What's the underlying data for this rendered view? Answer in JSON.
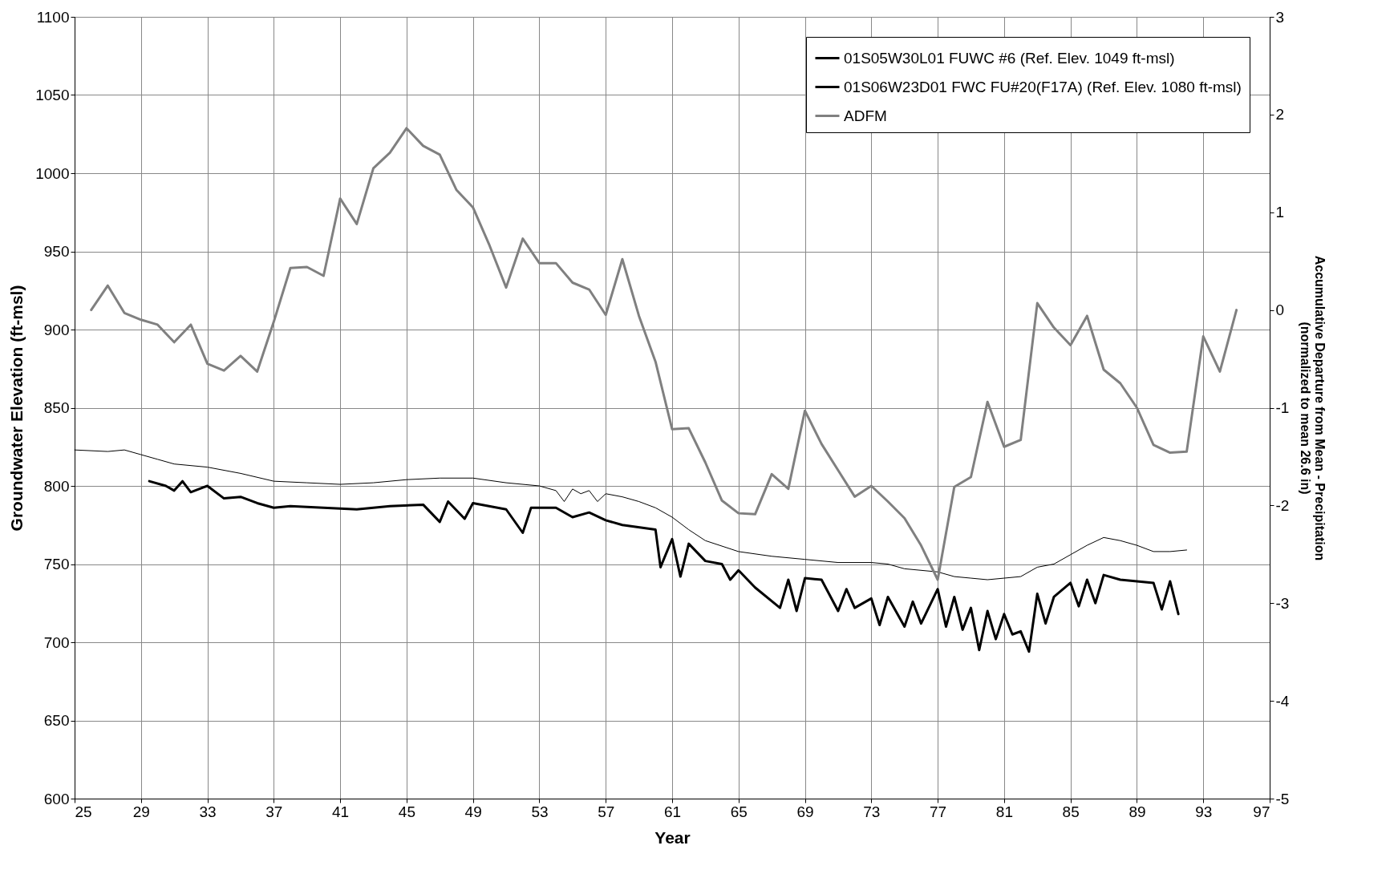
{
  "chart_data": {
    "type": "line",
    "xlabel": "Year",
    "ylabel": "Groundwater Elevation (ft-msl)",
    "y2label": "Accumulative Departure from Mean - Precipitation\n(normalized to mean 26.6 in)",
    "xlim": [
      25,
      97
    ],
    "xticks": [
      25,
      29,
      33,
      37,
      41,
      45,
      49,
      53,
      57,
      61,
      65,
      69,
      73,
      77,
      81,
      85,
      89,
      93,
      97
    ],
    "ylim": [
      600,
      1100
    ],
    "yticks": [
      600,
      650,
      700,
      750,
      800,
      850,
      900,
      950,
      1000,
      1050,
      1100
    ],
    "y2lim": [
      -5,
      3
    ],
    "y2ticks": [
      -5,
      -4,
      -3,
      -2,
      -1,
      0,
      1,
      2,
      3
    ],
    "grid": true,
    "legend": "top right",
    "marker": "none",
    "line_style": "solid",
    "series": [
      {
        "name": "01S05W30L01 FUWC #6 (Ref. Elev. 1049 ft-msl)",
        "color": "#000000",
        "x": [
          25,
          27,
          28,
          29,
          30,
          31,
          33,
          35,
          37,
          39,
          41,
          43,
          45,
          47,
          49,
          51,
          53,
          54,
          54.5,
          55,
          55.5,
          56,
          56.5,
          57,
          58,
          59,
          60,
          61,
          62,
          63,
          65,
          67,
          69,
          71,
          73,
          74,
          75,
          77,
          78,
          79,
          80,
          81,
          82,
          83,
          84,
          85,
          86,
          87,
          88,
          89,
          90,
          91,
          92
        ],
        "values": [
          823,
          822,
          823,
          820,
          817,
          814,
          812,
          808,
          803,
          802,
          801,
          802,
          804,
          805,
          805,
          802,
          800,
          797,
          790,
          798,
          795,
          797,
          790,
          795,
          793,
          790,
          786,
          780,
          772,
          765,
          758,
          755,
          753,
          751,
          751,
          750,
          747,
          745,
          742,
          741,
          740,
          741,
          742,
          748,
          750,
          756,
          762,
          767,
          765,
          762,
          758,
          758,
          759
        ]
      },
      {
        "name": "01S06W23D01 FWC FU#20(F17A) (Ref. Elev. 1080 ft-msl)",
        "color": "#000000",
        "x": [
          29.5,
          30.5,
          31,
          31.5,
          32,
          33,
          34,
          35,
          36,
          37,
          38,
          40,
          42,
          44,
          46,
          47,
          47.5,
          48.5,
          49,
          51,
          52,
          52.5,
          54,
          55,
          56,
          57,
          58,
          60,
          60.3,
          61,
          61.5,
          62,
          63,
          64,
          64.5,
          65,
          66,
          67.5,
          68,
          68.5,
          69,
          70,
          71,
          71.5,
          72,
          73,
          73.5,
          74,
          75,
          75.5,
          76,
          77,
          77.5,
          78,
          78.5,
          79,
          79.5,
          80,
          80.5,
          81,
          81.5,
          82,
          82.5,
          83,
          83.5,
          84,
          85,
          85.5,
          86,
          86.5,
          87,
          88,
          90,
          90.5,
          91,
          91.5
        ],
        "values": [
          803,
          800,
          797,
          803,
          796,
          800,
          792,
          793,
          789,
          786,
          787,
          786,
          785,
          787,
          788,
          777,
          790,
          779,
          789,
          785,
          770,
          786,
          786,
          780,
          783,
          778,
          775,
          772,
          748,
          766,
          742,
          763,
          752,
          750,
          740,
          746,
          735,
          722,
          740,
          720,
          741,
          740,
          720,
          734,
          722,
          728,
          711,
          729,
          710,
          726,
          712,
          734,
          710,
          729,
          708,
          722,
          695,
          720,
          702,
          718,
          705,
          707,
          694,
          731,
          712,
          729,
          738,
          723,
          740,
          725,
          743,
          740,
          738,
          721,
          739,
          718
        ]
      },
      {
        "name": "ADFM",
        "color": "#808080",
        "axis": "y2",
        "x": [
          26,
          27,
          28,
          29,
          30,
          31,
          32,
          33,
          34,
          35,
          36,
          37,
          38,
          39,
          40,
          41,
          42,
          43,
          44,
          45,
          46,
          47,
          48,
          49,
          50,
          51,
          52,
          53,
          54,
          55,
          56,
          57,
          58,
          59,
          60,
          61,
          62,
          63,
          64,
          65,
          66,
          67,
          68,
          69,
          70,
          71,
          72,
          73,
          74,
          75,
          76,
          77,
          78,
          79,
          80,
          81,
          82,
          83,
          84,
          85,
          86,
          87,
          88,
          89,
          90,
          91,
          92,
          93,
          94,
          95
        ],
        "values": [
          0.0,
          0.25,
          -0.03,
          -0.1,
          -0.15,
          -0.33,
          -0.15,
          -0.55,
          -0.62,
          -0.47,
          -0.63,
          -0.12,
          0.43,
          0.44,
          0.35,
          1.14,
          0.88,
          1.45,
          1.61,
          1.86,
          1.68,
          1.59,
          1.23,
          1.05,
          0.66,
          0.23,
          0.73,
          0.48,
          0.48,
          0.28,
          0.21,
          -0.05,
          0.52,
          -0.06,
          -0.53,
          -1.22,
          -1.21,
          -1.56,
          -1.95,
          -2.08,
          -2.09,
          -1.68,
          -1.83,
          -1.03,
          -1.37,
          -1.64,
          -1.91,
          -1.8,
          -1.96,
          -2.13,
          -2.41,
          -2.76,
          -1.81,
          -1.71,
          -0.94,
          -1.4,
          -1.33,
          0.07,
          -0.18,
          -0.36,
          -0.06,
          -0.61,
          -0.75,
          -1.0,
          -1.38,
          -1.46,
          -1.45,
          -0.27,
          -0.63,
          0.0
        ]
      }
    ]
  }
}
